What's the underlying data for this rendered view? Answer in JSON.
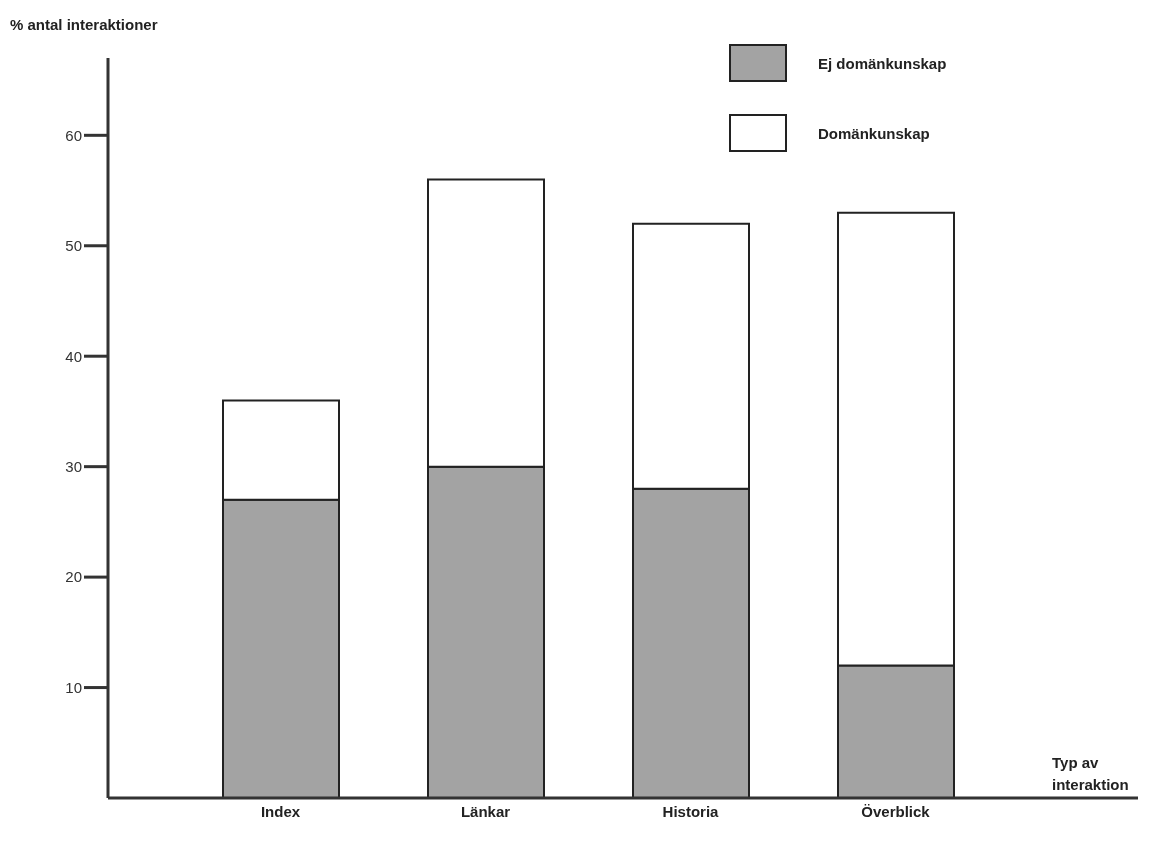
{
  "chart_data": {
    "type": "bar",
    "ylabel": "% antal interaktioner",
    "xlabel": "Typ av interaktion",
    "categories": [
      "Index",
      "Länkar",
      "Historia",
      "Överblick"
    ],
    "stacked": true,
    "ylim": [
      0,
      67
    ],
    "yticks": [
      10,
      20,
      30,
      40,
      50,
      60
    ],
    "grid": false,
    "legend": "top right",
    "series": [
      {
        "name": "Ej domänkunskap",
        "color": "#a3a3a3",
        "values": [
          27,
          30,
          28,
          12
        ]
      },
      {
        "name": "Domänkunskap",
        "color": "#ffffff",
        "values": [
          9,
          26,
          24,
          41
        ]
      }
    ]
  }
}
